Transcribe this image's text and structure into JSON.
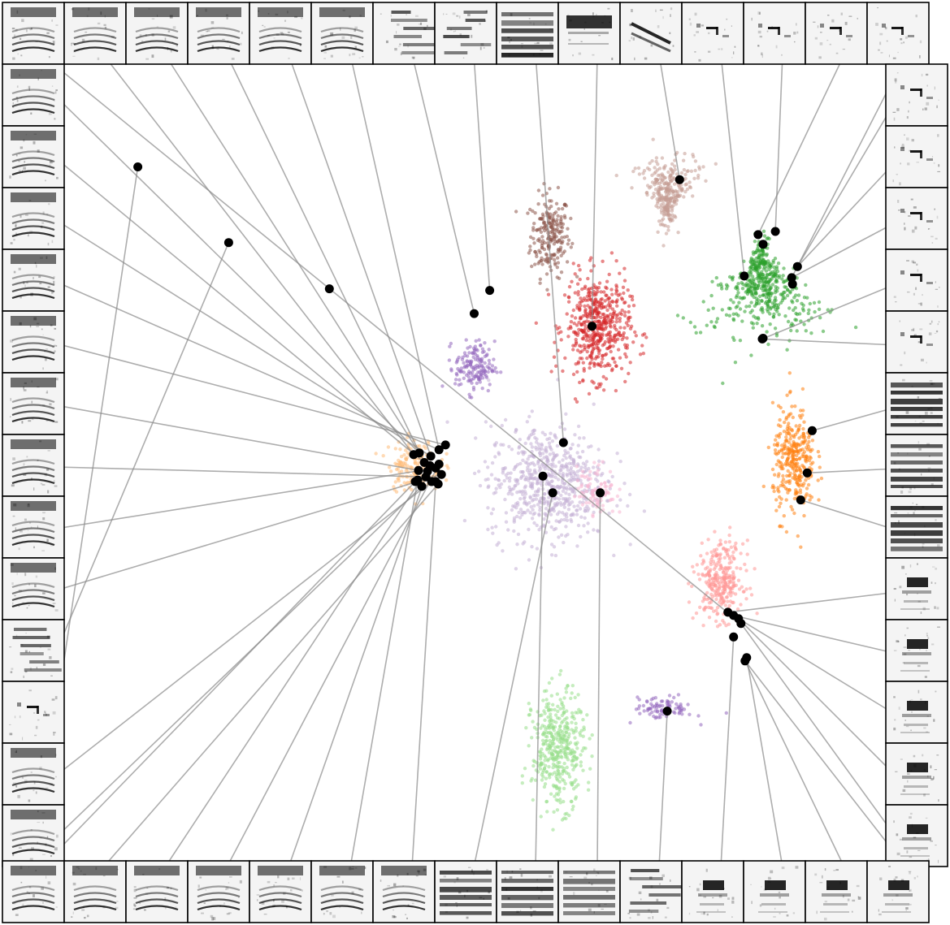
{
  "chart_data": {
    "type": "scatter",
    "grid": false,
    "axes_visible": false,
    "title": "",
    "xlabel": "",
    "ylabel": "",
    "xlim": [
      0,
      100
    ],
    "ylim": [
      0,
      100
    ],
    "clusters": [
      {
        "color": "#8c564b",
        "center": [
          59.2,
          78.5
        ],
        "spread": [
          1.2,
          2.6
        ],
        "shape": "blob",
        "count": 220
      },
      {
        "color": "#c49c94",
        "center": [
          73.6,
          84.0
        ],
        "spread": [
          2.2,
          2.0
        ],
        "shape": "cone",
        "count": 300
      },
      {
        "color": "#2ca02c",
        "center": [
          85.0,
          72.0
        ],
        "spread": [
          3.2,
          3.0
        ],
        "shape": "cone-up",
        "count": 500
      },
      {
        "color": "#d62728",
        "center": [
          65.0,
          67.0
        ],
        "spread": [
          2.0,
          3.2
        ],
        "shape": "blob",
        "count": 520
      },
      {
        "color": "#9467bd",
        "center": [
          50.0,
          62.0
        ],
        "spread": [
          1.2,
          1.6
        ],
        "shape": "blob",
        "count": 160
      },
      {
        "color": "#c5b0d5",
        "center": [
          58.8,
          47.5
        ],
        "spread": [
          3.6,
          3.6
        ],
        "shape": "blob",
        "count": 650
      },
      {
        "color": "#f7b6d2",
        "center": [
          64.8,
          46.5
        ],
        "spread": [
          1.2,
          1.6
        ],
        "shape": "blob",
        "count": 90
      },
      {
        "color": "#ffbb78",
        "center": [
          42.6,
          49.7
        ],
        "spread": [
          1.6,
          1.6
        ],
        "shape": "blob",
        "count": 160
      },
      {
        "color": "#ff7f0e",
        "center": [
          89.0,
          50.0
        ],
        "spread": [
          1.3,
          3.4
        ],
        "shape": "blob",
        "count": 330
      },
      {
        "color": "#ff9896",
        "center": [
          80.0,
          35.2
        ],
        "spread": [
          1.4,
          2.4
        ],
        "shape": "blob",
        "count": 300
      },
      {
        "color": "#9467bd",
        "center": [
          73.0,
          19.2
        ],
        "spread": [
          1.8,
          0.7
        ],
        "shape": "blob",
        "count": 90
      },
      {
        "color": "#98df8a",
        "center": [
          60.2,
          14.0
        ],
        "spread": [
          1.6,
          3.6
        ],
        "shape": "blob",
        "count": 420
      }
    ],
    "highlighted_points": [
      [
        8.8,
        87.1
      ],
      [
        19.9,
        77.6
      ],
      [
        32.2,
        71.8
      ],
      [
        42.5,
        51.0
      ],
      [
        43.2,
        51.2
      ],
      [
        43.8,
        50.0
      ],
      [
        44.6,
        50.8
      ],
      [
        45.6,
        51.6
      ],
      [
        46.4,
        52.2
      ],
      [
        43.1,
        49.0
      ],
      [
        44.0,
        48.2
      ],
      [
        45.2,
        49.3
      ],
      [
        45.9,
        48.5
      ],
      [
        44.7,
        47.6
      ],
      [
        43.5,
        47.0
      ],
      [
        42.7,
        47.6
      ],
      [
        45.5,
        47.3
      ],
      [
        44.5,
        49.6
      ],
      [
        45.6,
        49.8
      ],
      [
        44.2,
        48.9
      ],
      [
        43.0,
        47.8
      ],
      [
        45.2,
        47.6
      ],
      [
        51.8,
        71.6
      ],
      [
        49.9,
        68.7
      ],
      [
        60.8,
        52.5
      ],
      [
        59.5,
        46.2
      ],
      [
        58.3,
        48.3
      ],
      [
        65.3,
        46.2
      ],
      [
        64.3,
        67.1
      ],
      [
        75.0,
        85.5
      ],
      [
        84.6,
        78.6
      ],
      [
        86.7,
        79.0
      ],
      [
        85.2,
        77.4
      ],
      [
        82.9,
        73.4
      ],
      [
        89.4,
        74.6
      ],
      [
        88.7,
        73.2
      ],
      [
        88.8,
        72.4
      ],
      [
        85.1,
        65.5
      ],
      [
        85.2,
        65.6
      ],
      [
        91.2,
        54.0
      ],
      [
        90.6,
        48.7
      ],
      [
        89.8,
        45.3
      ],
      [
        80.9,
        31.2
      ],
      [
        81.6,
        30.8
      ],
      [
        82.2,
        30.4
      ],
      [
        82.5,
        29.8
      ],
      [
        81.6,
        28.1
      ],
      [
        83.2,
        25.5
      ],
      [
        83.0,
        25.1
      ],
      [
        73.5,
        18.8
      ]
    ],
    "thumbnails": [
      {
        "side": "top",
        "index": 0,
        "style": "harmonic",
        "point": 45
      },
      {
        "side": "top",
        "index": 1,
        "style": "harmonic",
        "point": 3
      },
      {
        "side": "top",
        "index": 2,
        "style": "harmonic",
        "point": 4
      },
      {
        "side": "top",
        "index": 3,
        "style": "harmonic",
        "point": 5
      },
      {
        "side": "top",
        "index": 4,
        "style": "harmonic",
        "point": 6
      },
      {
        "side": "top",
        "index": 5,
        "style": "harmonic",
        "point": 7
      },
      {
        "side": "top",
        "index": 6,
        "style": "broadband",
        "point": 23
      },
      {
        "side": "top",
        "index": 7,
        "style": "broadband",
        "point": 22
      },
      {
        "side": "top",
        "index": 8,
        "style": "stack",
        "point": 24
      },
      {
        "side": "top",
        "index": 9,
        "style": "band",
        "point": 28
      },
      {
        "side": "top",
        "index": 10,
        "style": "sweep",
        "point": 29
      },
      {
        "side": "top",
        "index": 11,
        "style": "sparse",
        "point": 33
      },
      {
        "side": "top",
        "index": 12,
        "style": "sparse",
        "point": 31
      },
      {
        "side": "top",
        "index": 13,
        "style": "sparse",
        "point": 30
      },
      {
        "side": "top",
        "index": 14,
        "style": "sparse",
        "point": 35
      },
      {
        "side": "right",
        "index": 0,
        "style": "sparse",
        "point": 34
      },
      {
        "side": "right",
        "index": 1,
        "style": "sparse",
        "point": 34
      },
      {
        "side": "right",
        "index": 2,
        "style": "sparse",
        "point": 35
      },
      {
        "side": "right",
        "index": 3,
        "style": "sparse",
        "point": 37
      },
      {
        "side": "right",
        "index": 4,
        "style": "sparse",
        "point": 37
      },
      {
        "side": "right",
        "index": 5,
        "style": "stack",
        "point": 39
      },
      {
        "side": "right",
        "index": 6,
        "style": "stack",
        "point": 40
      },
      {
        "side": "right",
        "index": 7,
        "style": "stack",
        "point": 41
      },
      {
        "side": "right",
        "index": 8,
        "style": "blob",
        "point": 42
      },
      {
        "side": "right",
        "index": 9,
        "style": "blob",
        "point": 43
      },
      {
        "side": "right",
        "index": 10,
        "style": "blob",
        "point": 44
      },
      {
        "side": "right",
        "index": 11,
        "style": "blob",
        "point": 44
      },
      {
        "side": "right",
        "index": 12,
        "style": "blob",
        "point": 45
      },
      {
        "side": "left",
        "index": 0,
        "style": "harmonic",
        "point": 4
      },
      {
        "side": "left",
        "index": 1,
        "style": "harmonic",
        "point": 5
      },
      {
        "side": "left",
        "index": 2,
        "style": "harmonic",
        "point": 6
      },
      {
        "side": "left",
        "index": 3,
        "style": "harmonic",
        "point": 7
      },
      {
        "side": "left",
        "index": 4,
        "style": "harmonic",
        "point": 8
      },
      {
        "side": "left",
        "index": 5,
        "style": "harmonic",
        "point": 9
      },
      {
        "side": "left",
        "index": 6,
        "style": "harmonic",
        "point": 10
      },
      {
        "side": "left",
        "index": 7,
        "style": "harmonic",
        "point": 11
      },
      {
        "side": "left",
        "index": 8,
        "style": "harmonic",
        "point": 12
      },
      {
        "side": "left",
        "index": 9,
        "style": "broadband",
        "point": 1
      },
      {
        "side": "left",
        "index": 10,
        "style": "sparse",
        "point": 0
      },
      {
        "side": "left",
        "index": 11,
        "style": "harmonic",
        "point": 13
      },
      {
        "side": "left",
        "index": 12,
        "style": "harmonic",
        "point": 14
      },
      {
        "side": "bottom",
        "index": 0,
        "style": "harmonic",
        "point": 15
      },
      {
        "side": "bottom",
        "index": 1,
        "style": "harmonic",
        "point": 16
      },
      {
        "side": "bottom",
        "index": 2,
        "style": "harmonic",
        "point": 17
      },
      {
        "side": "bottom",
        "index": 3,
        "style": "harmonic",
        "point": 18
      },
      {
        "side": "bottom",
        "index": 4,
        "style": "harmonic",
        "point": 19
      },
      {
        "side": "bottom",
        "index": 5,
        "style": "harmonic",
        "point": 20
      },
      {
        "side": "bottom",
        "index": 6,
        "style": "harmonic",
        "point": 21
      },
      {
        "side": "bottom",
        "index": 7,
        "style": "stack",
        "point": 25
      },
      {
        "side": "bottom",
        "index": 8,
        "style": "stack",
        "point": 26
      },
      {
        "side": "bottom",
        "index": 9,
        "style": "stack",
        "point": 27
      },
      {
        "side": "bottom",
        "index": 10,
        "style": "broadband",
        "point": 49
      },
      {
        "side": "bottom",
        "index": 11,
        "style": "blob",
        "point": 46
      },
      {
        "side": "bottom",
        "index": 12,
        "style": "blob",
        "point": 47
      },
      {
        "side": "bottom",
        "index": 13,
        "style": "blob",
        "point": 48
      },
      {
        "side": "bottom",
        "index": 14,
        "style": "blob",
        "point": 48
      }
    ]
  }
}
